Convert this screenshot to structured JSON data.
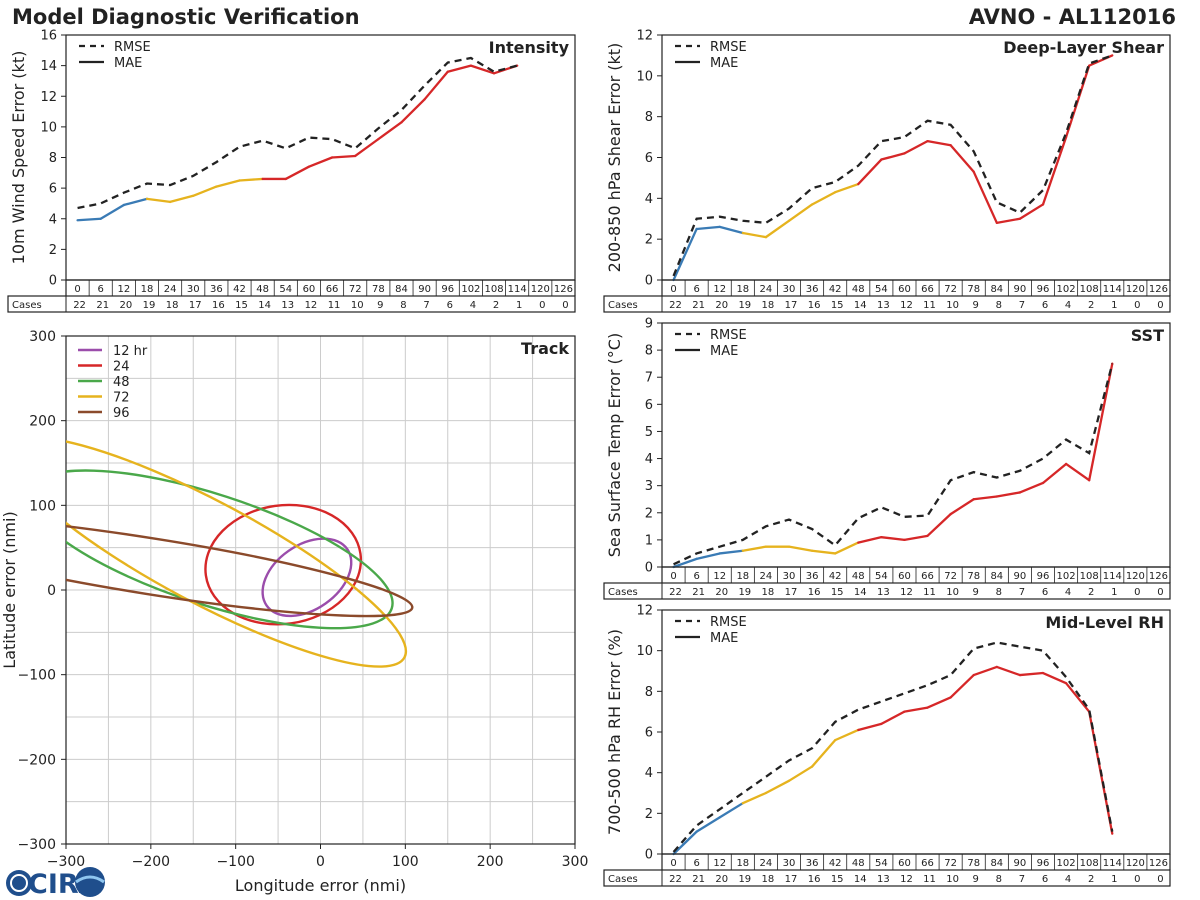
{
  "header": {
    "title": "Model Diagnostic Verification",
    "storm_id": "AVNO - AL112016"
  },
  "colors": {
    "blue": "#3a7bb5",
    "yellow": "#e6b31e",
    "red": "#d62728",
    "black": "#222222",
    "purple": "#9b4dab",
    "green": "#4aa84a",
    "brown": "#8b4a2b"
  },
  "logo": {
    "text": "CIRA"
  },
  "forecast_hours": [
    "0",
    "6",
    "12",
    "18",
    "24",
    "30",
    "36",
    "42",
    "48",
    "54",
    "60",
    "66",
    "72",
    "78",
    "84",
    "90",
    "96",
    "102",
    "108",
    "114",
    "120",
    "126"
  ],
  "cases_label": "Cases",
  "cases": [
    "22",
    "21",
    "20",
    "19",
    "18",
    "17",
    "16",
    "15",
    "14",
    "13",
    "12",
    "11",
    "10",
    "9",
    "8",
    "7",
    "6",
    "4",
    "2",
    "1",
    "0",
    "0"
  ],
  "chart_data": [
    {
      "id": "intensity",
      "type": "line",
      "title": "Intensity",
      "ylabel": "10m Wind Speed Error (kt)",
      "ylim": [
        0,
        16
      ],
      "yticks": [
        0,
        2,
        4,
        6,
        8,
        10,
        12,
        14,
        16
      ],
      "legend": [
        "RMSE",
        "MAE"
      ],
      "x": [
        0,
        6,
        12,
        18,
        24,
        30,
        36,
        42,
        48,
        54,
        60,
        66,
        72,
        78,
        84,
        90,
        96,
        102,
        108,
        114
      ],
      "series": [
        {
          "name": "RMSE",
          "style": "dashed",
          "values": [
            4.7,
            5.0,
            5.7,
            6.3,
            6.2,
            6.8,
            7.7,
            8.7,
            9.1,
            8.6,
            9.3,
            9.2,
            8.6,
            9.9,
            11.1,
            12.7,
            14.2,
            14.5,
            13.6,
            14.0
          ]
        },
        {
          "name": "MAE",
          "style": "solid",
          "values": [
            3.9,
            4.0,
            4.9,
            5.3,
            5.1,
            5.5,
            6.1,
            6.5,
            6.6,
            6.6,
            7.4,
            8.0,
            8.1,
            9.2,
            10.3,
            11.8,
            13.6,
            14.0,
            13.5,
            14.0
          ]
        }
      ]
    },
    {
      "id": "shear",
      "type": "line",
      "title": "Deep-Layer Shear",
      "ylabel": "200-850 hPa Shear Error (kt)",
      "ylim": [
        0,
        12
      ],
      "yticks": [
        0,
        2,
        4,
        6,
        8,
        10,
        12
      ],
      "legend": [
        "RMSE",
        "MAE"
      ],
      "x": [
        0,
        6,
        12,
        18,
        24,
        30,
        36,
        42,
        48,
        54,
        60,
        66,
        72,
        78,
        84,
        90,
        96,
        102,
        108,
        114
      ],
      "series": [
        {
          "name": "RMSE",
          "style": "dashed",
          "values": [
            0.2,
            3.0,
            3.1,
            2.9,
            2.8,
            3.5,
            4.5,
            4.8,
            5.6,
            6.8,
            7.0,
            7.8,
            7.6,
            6.3,
            3.8,
            3.3,
            4.4,
            7.2,
            10.6,
            11.0
          ]
        },
        {
          "name": "MAE",
          "style": "solid",
          "values": [
            0.0,
            2.5,
            2.6,
            2.3,
            2.1,
            2.9,
            3.7,
            4.3,
            4.7,
            5.9,
            6.2,
            6.8,
            6.6,
            5.3,
            2.8,
            3.0,
            3.7,
            7.0,
            10.5,
            11.0
          ]
        }
      ]
    },
    {
      "id": "sst",
      "type": "line",
      "title": "SST",
      "ylabel": "Sea Surface Temp Error (°C)",
      "ylim": [
        0,
        9
      ],
      "yticks": [
        0,
        1,
        2,
        3,
        4,
        5,
        6,
        7,
        8,
        9
      ],
      "legend": [
        "RMSE",
        "MAE"
      ],
      "x": [
        0,
        6,
        12,
        18,
        24,
        30,
        36,
        42,
        48,
        54,
        60,
        66,
        72,
        78,
        84,
        90,
        96,
        102,
        108,
        114
      ],
      "series": [
        {
          "name": "RMSE",
          "style": "dashed",
          "values": [
            0.1,
            0.5,
            0.75,
            1.0,
            1.5,
            1.75,
            1.4,
            0.8,
            1.8,
            2.2,
            1.85,
            1.9,
            3.2,
            3.5,
            3.3,
            3.55,
            4.0,
            4.7,
            4.2,
            7.5
          ]
        },
        {
          "name": "MAE",
          "style": "solid",
          "values": [
            0.0,
            0.3,
            0.5,
            0.6,
            0.75,
            0.75,
            0.6,
            0.5,
            0.9,
            1.1,
            1.0,
            1.15,
            1.95,
            2.5,
            2.6,
            2.75,
            3.1,
            3.8,
            3.2,
            7.5
          ]
        }
      ]
    },
    {
      "id": "rh",
      "type": "line",
      "title": "Mid-Level RH",
      "ylabel": "700-500 hPa RH Error (%)",
      "ylim": [
        0,
        12
      ],
      "yticks": [
        0,
        2,
        4,
        6,
        8,
        10,
        12
      ],
      "legend": [
        "RMSE",
        "MAE"
      ],
      "x": [
        0,
        6,
        12,
        18,
        24,
        30,
        36,
        42,
        48,
        54,
        60,
        66,
        72,
        78,
        84,
        90,
        96,
        102,
        108,
        114
      ],
      "series": [
        {
          "name": "RMSE",
          "style": "dashed",
          "values": [
            0.1,
            1.4,
            2.2,
            3.0,
            3.8,
            4.6,
            5.2,
            6.5,
            7.1,
            7.5,
            7.9,
            8.3,
            8.8,
            10.1,
            10.4,
            10.2,
            10.0,
            8.7,
            7.1,
            1.1
          ]
        },
        {
          "name": "MAE",
          "style": "solid",
          "values": [
            0.0,
            1.1,
            1.8,
            2.5,
            3.0,
            3.6,
            4.3,
            5.6,
            6.1,
            6.4,
            7.0,
            7.2,
            7.7,
            8.8,
            9.2,
            8.8,
            8.9,
            8.4,
            7.0,
            1.0
          ]
        }
      ]
    },
    {
      "id": "track",
      "type": "ellipse",
      "title": "Track",
      "xlabel": "Longitude error (nmi)",
      "ylabel": "Latitude error (nmi)",
      "xlim": [
        -300,
        300
      ],
      "ylim": [
        -300,
        300
      ],
      "xticks": [
        -300,
        -200,
        -100,
        0,
        100,
        200,
        300
      ],
      "yticks": [
        -300,
        -200,
        -100,
        0,
        100,
        200,
        300
      ],
      "legend": [
        "12 hr",
        "24",
        "48",
        "72",
        "96"
      ],
      "ellipses": [
        {
          "name": "12 hr",
          "color": "#9b4dab",
          "cx": -16,
          "cy": 15,
          "rx": 58,
          "ry": 38,
          "angle": 35
        },
        {
          "name": "24",
          "color": "#d62728",
          "cx": -44,
          "cy": 30,
          "rx": 92,
          "ry": 70,
          "angle": 8
        },
        {
          "name": "48",
          "color": "#4aa84a",
          "cx": -130,
          "cy": 48,
          "rx": 225,
          "ry": 65,
          "angle": -18
        },
        {
          "name": "72",
          "color": "#e6b31e",
          "cx": -135,
          "cy": 45,
          "rx": 265,
          "ry": 60,
          "angle": -28
        },
        {
          "name": "96",
          "color": "#8b4a2b",
          "cx": -200,
          "cy": 28,
          "rx": 312,
          "ry": 33,
          "angle": -9
        }
      ]
    }
  ]
}
